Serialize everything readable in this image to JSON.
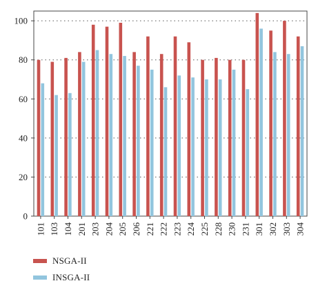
{
  "chart_data": {
    "type": "bar",
    "categories": [
      "101",
      "103",
      "104",
      "201",
      "203",
      "204",
      "205",
      "206",
      "221",
      "222",
      "223",
      "224",
      "225",
      "228",
      "230",
      "231",
      "301",
      "302",
      "303",
      "304"
    ],
    "series": [
      {
        "name": "NSGA-II",
        "color": "#c8534f",
        "values": [
          80,
          79,
          81,
          84,
          98,
          97,
          99,
          84,
          92,
          83,
          92,
          89,
          80,
          81,
          80,
          80,
          104,
          95,
          100,
          92
        ]
      },
      {
        "name": "INSGA-II",
        "color": "#92c5de",
        "values": [
          68,
          62,
          63,
          79,
          85,
          83,
          82,
          77,
          75,
          66,
          72,
          71,
          70,
          70,
          75,
          65,
          96,
          84,
          83,
          87
        ]
      }
    ],
    "y_ticks": [
      0,
      20,
      40,
      60,
      80,
      100
    ],
    "ylim": [
      0,
      105
    ],
    "grid": "horizontal dotted",
    "legend_position": "bottom-left"
  }
}
